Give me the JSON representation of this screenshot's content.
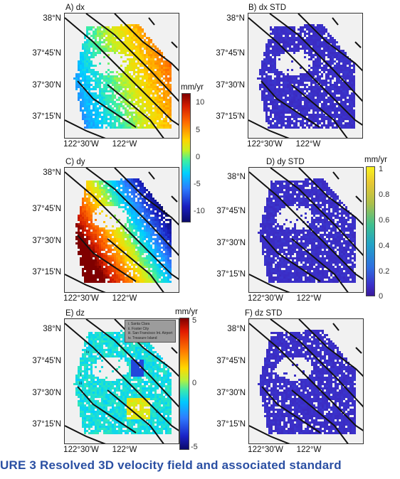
{
  "figure": {
    "caption": "URE 3 Resolved 3D velocity field and associated standard"
  },
  "panels": [
    {
      "id": "A",
      "title": "A) dx",
      "y_ticks": [
        "38°N",
        "37°45'N",
        "37°30'N",
        "37°15'N"
      ],
      "x_ticks": [
        "122°30'W",
        "122°W"
      ],
      "field": "dx"
    },
    {
      "id": "B",
      "title": "B) dx STD",
      "y_ticks": [
        "38°N",
        "37°45'N",
        "37°30'N",
        "37°15'N"
      ],
      "x_ticks": [
        "122°30'W",
        "122°W"
      ],
      "field": "std"
    },
    {
      "id": "C",
      "title": "C) dy",
      "y_ticks": [
        "38°N",
        "37°45'N",
        "37°30'N",
        "37°15'N"
      ],
      "x_ticks": [
        "122°30'W",
        "122°W"
      ],
      "field": "dy"
    },
    {
      "id": "D",
      "title": "D) dy STD",
      "y_ticks": [
        "38°N",
        "37°45'N",
        "37°30'N",
        "37°15'N"
      ],
      "x_ticks": [
        "122°30'W",
        "122°W"
      ],
      "field": "std"
    },
    {
      "id": "E",
      "title": "E) dz",
      "y_ticks": [
        "38°N",
        "37°45'N",
        "37°30'N",
        "37°15'N"
      ],
      "x_ticks": [
        "122°30'W",
        "122°W"
      ],
      "field": "dz"
    },
    {
      "id": "F",
      "title": "F) dz STD",
      "y_ticks": [
        "38°N",
        "37°45'N",
        "37°30'N",
        "37°15'N"
      ],
      "x_ticks": [
        "122°30'W",
        "122°W"
      ],
      "field": "std"
    }
  ],
  "colorbars": {
    "horizontal": {
      "unit": "mm/yr",
      "ticks": [
        "10",
        "5",
        "0",
        "-5",
        "-10"
      ],
      "range": [
        -12,
        12
      ]
    },
    "std": {
      "unit": "mm/yr",
      "ticks": [
        "1",
        "0.8",
        "0.6",
        "0.4",
        "0.2",
        "0"
      ],
      "range": [
        0,
        1
      ]
    },
    "vertical": {
      "unit": "mm/yr",
      "ticks": [
        "5",
        "0",
        "-5"
      ],
      "range": [
        -5,
        5
      ]
    }
  },
  "legend": {
    "items": [
      "i. Santa Clara",
      "ii. Foster City",
      "iii. San Francisco Int. Airport",
      "iv. Treasure Island"
    ]
  },
  "site_markers": [
    "iv",
    "i",
    "iii",
    "ii"
  ],
  "colors": {
    "background": "#f1f1f1",
    "faults": "#111111",
    "caption": "#2a4fa3"
  }
}
